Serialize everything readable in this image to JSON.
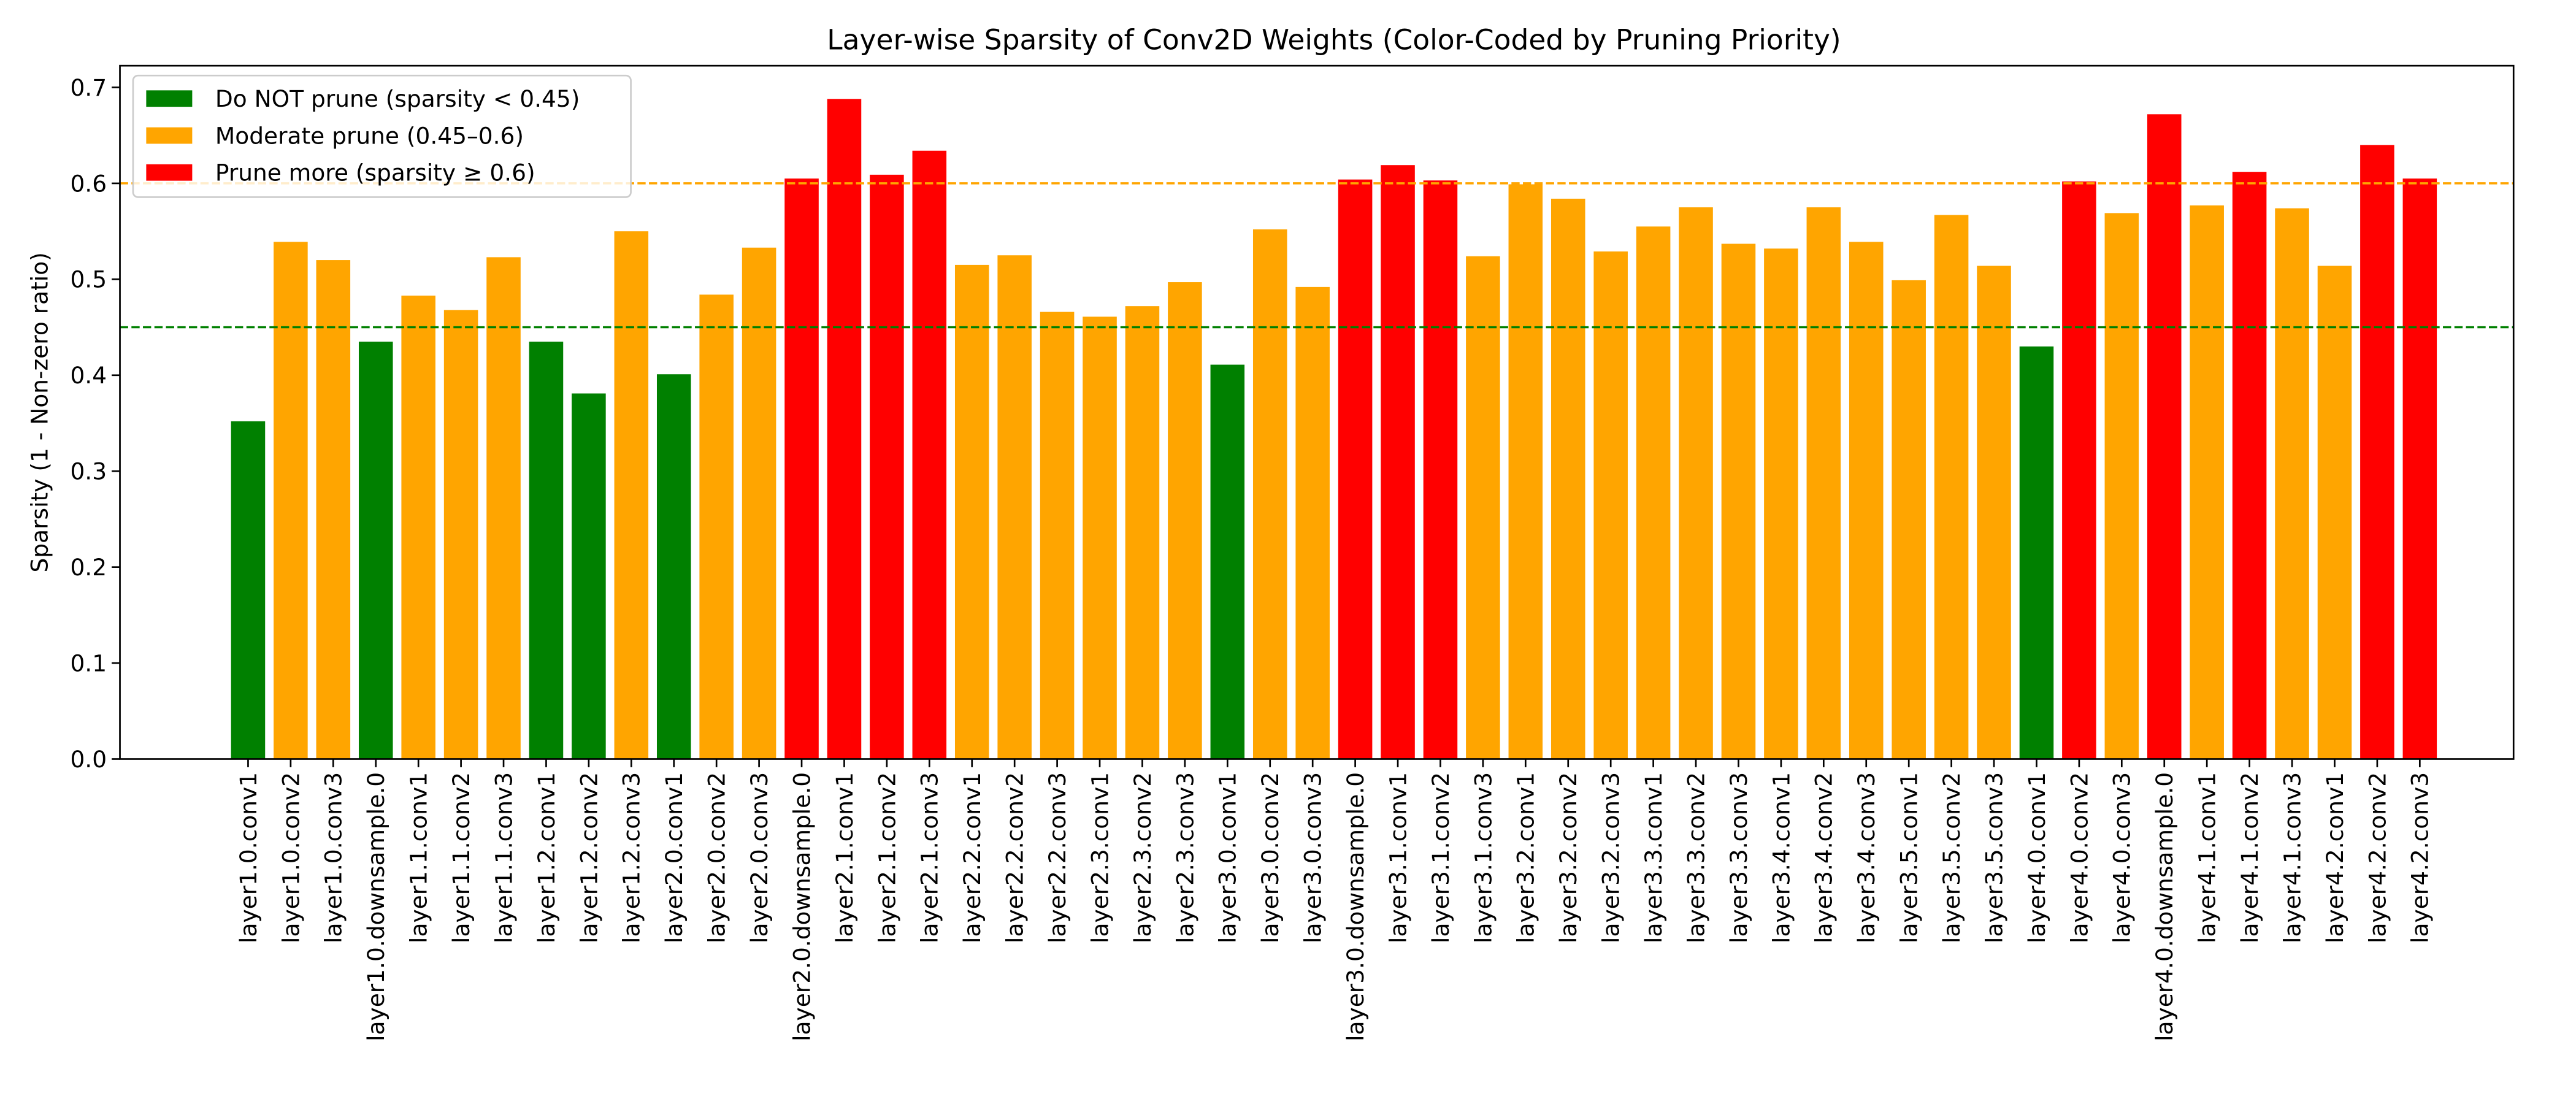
{
  "chart_data": {
    "type": "bar",
    "title": "Layer-wise Sparsity of Conv2D Weights (Color-Coded by Pruning Priority)",
    "ylabel": "Sparsity (1 - Non-zero ratio)",
    "categories": [
      "layer1.0.conv1",
      "layer1.0.conv2",
      "layer1.0.conv3",
      "layer1.0.downsample.0",
      "layer1.1.conv1",
      "layer1.1.conv2",
      "layer1.1.conv3",
      "layer1.2.conv1",
      "layer1.2.conv2",
      "layer1.2.conv3",
      "layer2.0.conv1",
      "layer2.0.conv2",
      "layer2.0.conv3",
      "layer2.0.downsample.0",
      "layer2.1.conv1",
      "layer2.1.conv2",
      "layer2.1.conv3",
      "layer2.2.conv1",
      "layer2.2.conv2",
      "layer2.2.conv3",
      "layer2.3.conv1",
      "layer2.3.conv2",
      "layer2.3.conv3",
      "layer3.0.conv1",
      "layer3.0.conv2",
      "layer3.0.conv3",
      "layer3.0.downsample.0",
      "layer3.1.conv1",
      "layer3.1.conv2",
      "layer3.1.conv3",
      "layer3.2.conv1",
      "layer3.2.conv2",
      "layer3.2.conv3",
      "layer3.3.conv1",
      "layer3.3.conv2",
      "layer3.3.conv3",
      "layer3.4.conv1",
      "layer3.4.conv2",
      "layer3.4.conv3",
      "layer3.5.conv1",
      "layer3.5.conv2",
      "layer3.5.conv3",
      "layer4.0.conv1",
      "layer4.0.conv2",
      "layer4.0.conv3",
      "layer4.0.downsample.0",
      "layer4.1.conv1",
      "layer4.1.conv2",
      "layer4.1.conv3",
      "layer4.2.conv1",
      "layer4.2.conv2",
      "layer4.2.conv3"
    ],
    "values": [
      0.352,
      0.539,
      0.52,
      0.435,
      0.483,
      0.468,
      0.523,
      0.435,
      0.381,
      0.55,
      0.401,
      0.484,
      0.533,
      0.605,
      0.688,
      0.609,
      0.634,
      0.515,
      0.525,
      0.466,
      0.461,
      0.472,
      0.497,
      0.411,
      0.552,
      0.492,
      0.604,
      0.619,
      0.603,
      0.524,
      0.599,
      0.584,
      0.529,
      0.555,
      0.575,
      0.537,
      0.532,
      0.575,
      0.539,
      0.499,
      0.567,
      0.514,
      0.43,
      0.602,
      0.569,
      0.672,
      0.577,
      0.612,
      0.574,
      0.514,
      0.64,
      0.605
    ],
    "colors": [
      "#008000",
      "#ffa500",
      "#ffa500",
      "#008000",
      "#ffa500",
      "#ffa500",
      "#ffa500",
      "#008000",
      "#008000",
      "#ffa500",
      "#008000",
      "#ffa500",
      "#ffa500",
      "#ff0000",
      "#ff0000",
      "#ff0000",
      "#ff0000",
      "#ffa500",
      "#ffa500",
      "#ffa500",
      "#ffa500",
      "#ffa500",
      "#ffa500",
      "#008000",
      "#ffa500",
      "#ffa500",
      "#ff0000",
      "#ff0000",
      "#ff0000",
      "#ffa500",
      "#ffa500",
      "#ffa500",
      "#ffa500",
      "#ffa500",
      "#ffa500",
      "#ffa500",
      "#ffa500",
      "#ffa500",
      "#ffa500",
      "#ffa500",
      "#ffa500",
      "#ffa500",
      "#008000",
      "#ff0000",
      "#ffa500",
      "#ff0000",
      "#ffa500",
      "#ff0000",
      "#ffa500",
      "#ffa500",
      "#ff0000",
      "#ff0000"
    ],
    "legend_entries": [
      {
        "name": "Do NOT prune (sparsity < 0.45)",
        "color": "#008000"
      },
      {
        "name": "Moderate prune (0.45–0.6)",
        "color": "#ffa500"
      },
      {
        "name": "Prune more (sparsity ≥ 0.6)",
        "color": "#ff0000"
      }
    ],
    "reference_lines": [
      {
        "value": 0.45,
        "color": "#008000"
      },
      {
        "value": 0.6,
        "color": "#ffa500"
      }
    ],
    "ylim": [
      0,
      0.7226
    ],
    "yticks": [
      0.0,
      0.1,
      0.2,
      0.3,
      0.4,
      0.5,
      0.6,
      0.7
    ],
    "legend_position": "upper left",
    "grid": false
  }
}
